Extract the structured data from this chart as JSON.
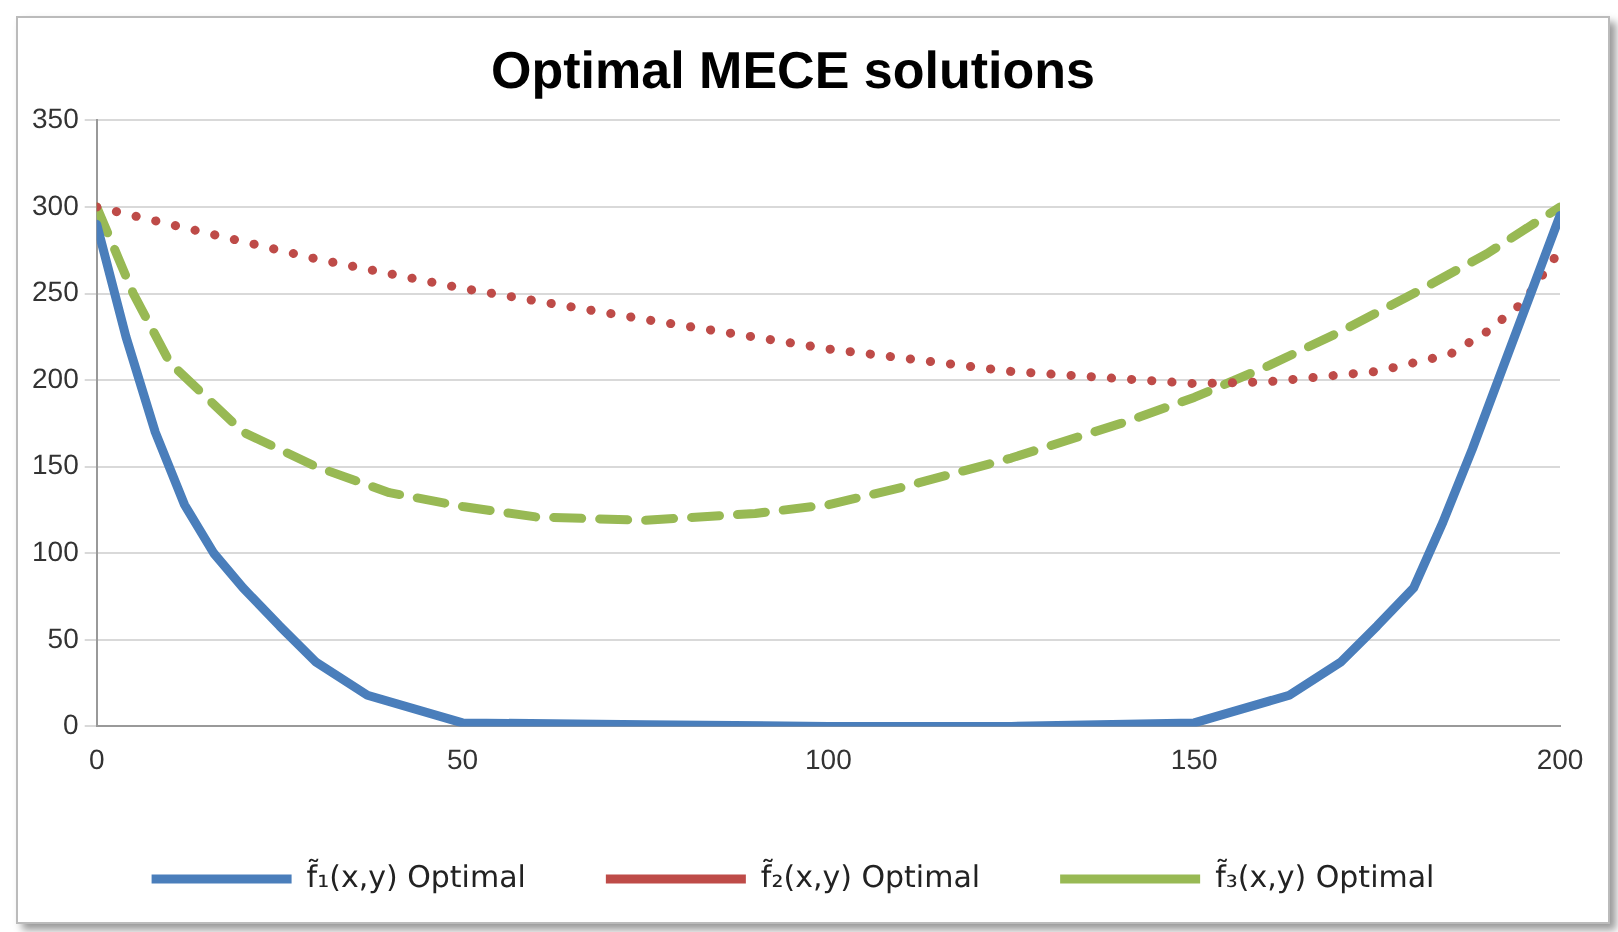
{
  "chart_data": {
    "type": "line",
    "title": "Optimal MECE solutions",
    "xlim": [
      0,
      200
    ],
    "xticks": [
      0,
      50,
      100,
      150,
      200
    ],
    "ylim": [
      0,
      350
    ],
    "yticks": [
      0,
      50,
      100,
      150,
      200,
      250,
      300,
      350
    ],
    "grid": "y",
    "legend": "bottom",
    "marker": "none",
    "series": [
      {
        "name": "f̃₁(x,y) Optimal",
        "color": "#4a7ebb",
        "line_style": "solid",
        "x": [
          0,
          4,
          8,
          12,
          16,
          20,
          25,
          30,
          37,
          50,
          75,
          100,
          125,
          150,
          163,
          170,
          175,
          180,
          184,
          188,
          192,
          196,
          200
        ],
        "values": [
          290,
          225,
          170,
          128,
          100,
          80,
          58,
          37,
          18,
          2,
          1,
          0,
          0,
          2,
          18,
          37,
          58,
          80,
          118,
          160,
          205,
          250,
          295
        ]
      },
      {
        "name": "f̃₂(x,y) Optimal",
        "color": "#be4b48",
        "line_style": "dotted",
        "x": [
          0,
          10,
          20,
          30,
          50,
          75,
          100,
          125,
          150,
          160,
          175,
          185,
          190,
          195,
          200
        ],
        "values": [
          300,
          290,
          280,
          270,
          253,
          235,
          218,
          205,
          198,
          199,
          205,
          215,
          228,
          245,
          275
        ]
      },
      {
        "name": "f̃₃(x,y) Optimal",
        "color": "#98b954",
        "line_style": "dashed",
        "x": [
          0,
          5,
          10,
          20,
          30,
          40,
          50,
          60,
          75,
          90,
          100,
          110,
          125,
          140,
          150,
          160,
          170,
          180,
          190,
          200
        ],
        "values": [
          300,
          250,
          210,
          170,
          150,
          135,
          127,
          121,
          119,
          123,
          128,
          138,
          155,
          175,
          190,
          208,
          228,
          250,
          273,
          300
        ]
      }
    ]
  }
}
